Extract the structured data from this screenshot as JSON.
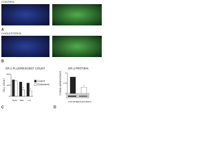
{
  "panels": {
    "control_label": "CONTROL",
    "cholesterol_label": "CHOLESTEROL",
    "labels": [
      "A",
      "B",
      "C",
      "D"
    ]
  },
  "chart_data": [
    {
      "type": "bar",
      "title": "ER α FLUORESCENT COUNT",
      "y_label": "CELL COUNT",
      "categories": [
        "DAPI",
        "ERα",
        "CO"
      ],
      "series": [
        {
          "name": "Control",
          "color": "#222222",
          "values": [
            150,
            130,
            120
          ]
        },
        {
          "name": "Cholesterol",
          "color": "#ffffff",
          "values": [
            140,
            60,
            50
          ]
        }
      ],
      "annotations": [
        "*",
        "*"
      ],
      "ylim": [
        0,
        200
      ],
      "yticks": [
        0,
        100,
        200
      ]
    },
    {
      "type": "bar",
      "title": "ER α PROTEIN",
      "y_label": "CHEMILUMINESCENCE",
      "categories": [
        "CONTROL",
        "CHOLESTEROL"
      ],
      "values": [
        0.8,
        0.3
      ],
      "colors": [
        "#222222",
        "#ffffff"
      ],
      "annotations": [
        "*"
      ],
      "ylim": [
        0,
        1
      ],
      "yticks": [
        0,
        0.5,
        1
      ]
    }
  ]
}
